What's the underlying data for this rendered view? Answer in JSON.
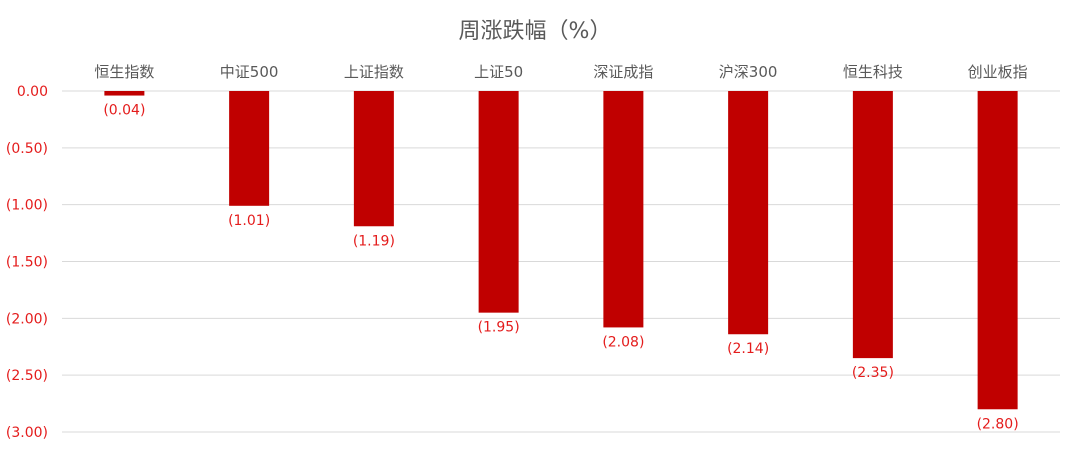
{
  "chart_data": {
    "type": "bar",
    "title": "周涨跌幅（%）",
    "categories": [
      "恒生指数",
      "中证500",
      "上证指数",
      "上证50",
      "深证成指",
      "沪深300",
      "恒生科技",
      "创业板指"
    ],
    "values": [
      -0.04,
      -1.01,
      -1.19,
      -1.95,
      -2.08,
      -2.14,
      -2.35,
      -2.8
    ],
    "data_labels": [
      "(0.04)",
      "(1.01)",
      "(1.19)",
      "(1.95)",
      "(2.08)",
      "(2.14)",
      "(2.35)",
      "(2.80)"
    ],
    "y_ticks": [
      0,
      -0.5,
      -1.0,
      -1.5,
      -2.0,
      -2.5,
      -3.0
    ],
    "y_tick_labels": [
      "0.00",
      "(0.50)",
      "(1.00)",
      "(1.50)",
      "(2.00)",
      "(2.50)",
      "(3.00)"
    ],
    "ylim": [
      -3.0,
      0
    ],
    "xlabel": "",
    "ylabel": "",
    "grid": true,
    "category_label_position": "top",
    "colors": {
      "bar": "#c00000",
      "labels": "#e41c1c",
      "text": "#595959",
      "grid": "#d9d9d9"
    }
  }
}
